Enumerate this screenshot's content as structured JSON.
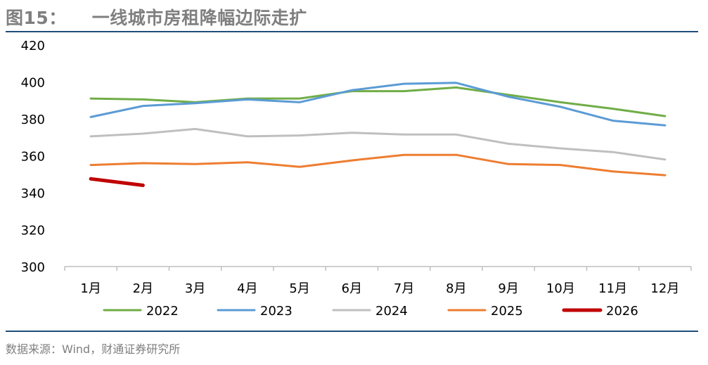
{
  "header": {
    "figure_no": "图15：",
    "title": "一线城市房租降幅边际走扩"
  },
  "footer": {
    "source": "数据来源：Wind，财通证券研究所"
  },
  "chart_data": {
    "type": "line",
    "title": "一线城市房租降幅边际走扩",
    "xlabel": "",
    "ylabel": "",
    "categories": [
      "1月",
      "2月",
      "3月",
      "4月",
      "5月",
      "6月",
      "7月",
      "8月",
      "9月",
      "10月",
      "11月",
      "12月"
    ],
    "ylim": [
      300,
      420
    ],
    "yticks": [
      300,
      320,
      340,
      360,
      380,
      400,
      420
    ],
    "grid": false,
    "legend_position": "bottom",
    "series": [
      {
        "name": "2022",
        "color": "#70ad47",
        "width": 3,
        "values": [
          391,
          390.5,
          389,
          391,
          391,
          395,
          395,
          397,
          393,
          389,
          385.5,
          381.5
        ]
      },
      {
        "name": "2023",
        "color": "#5b9bd5",
        "width": 3,
        "values": [
          381,
          387,
          388.5,
          390.5,
          389,
          395.5,
          399,
          399.5,
          392,
          386.5,
          379,
          376.5
        ]
      },
      {
        "name": "2024",
        "color": "#bfbfbf",
        "width": 3,
        "values": [
          370.5,
          372,
          374.5,
          370.5,
          371,
          372.5,
          371.5,
          371.5,
          366.5,
          364,
          362,
          358
        ]
      },
      {
        "name": "2025",
        "color": "#ed7d31",
        "width": 3,
        "values": [
          355,
          356,
          355.5,
          356.5,
          354,
          357.5,
          360.5,
          360.5,
          355.5,
          355,
          351.5,
          349.5
        ]
      },
      {
        "name": "2026",
        "color": "#c00000",
        "width": 5,
        "values": [
          347.5,
          344,
          null,
          null,
          null,
          null,
          null,
          null,
          null,
          null,
          null,
          null
        ]
      }
    ]
  }
}
